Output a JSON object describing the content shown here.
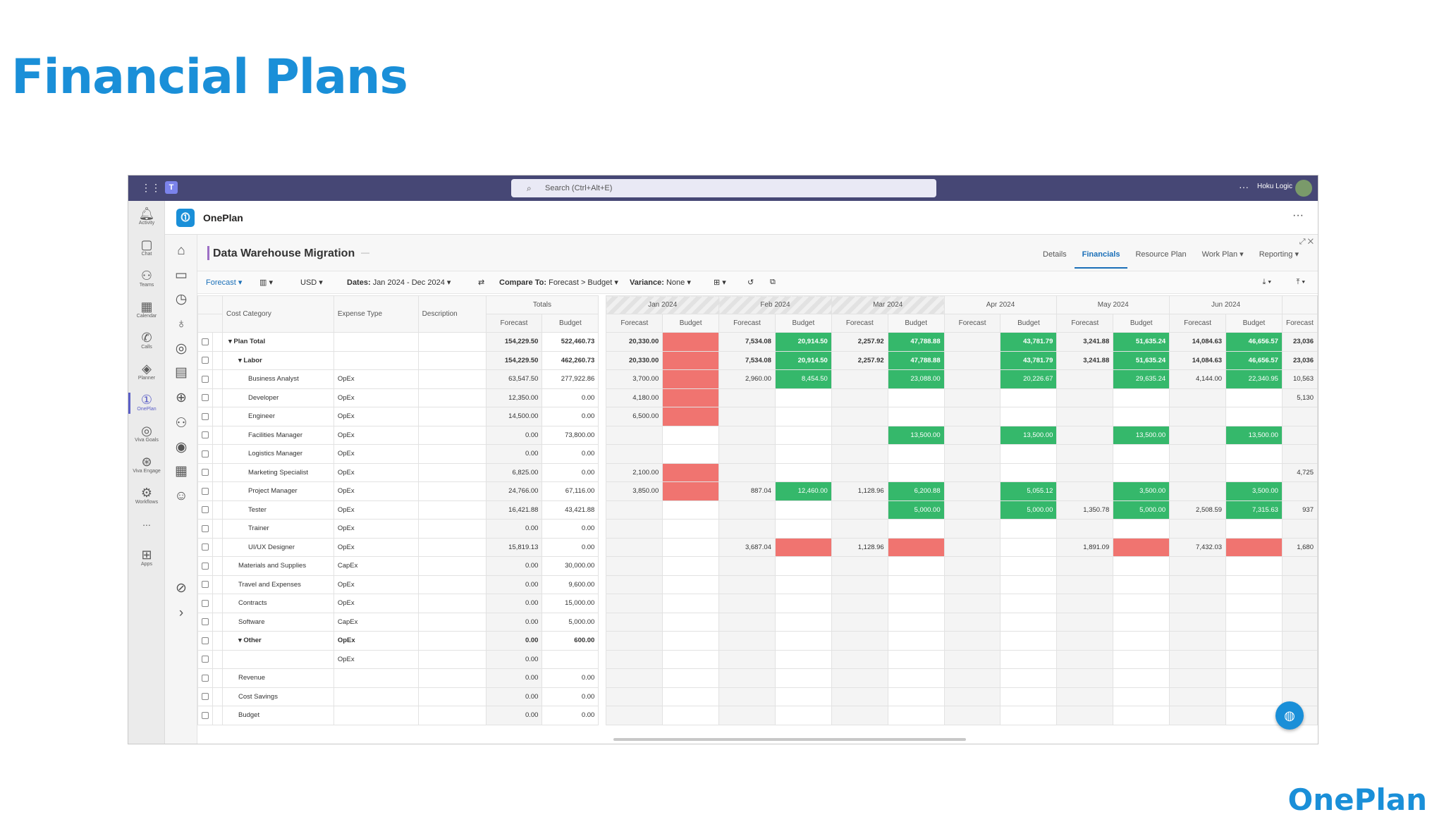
{
  "slide": {
    "title": "Financial Plans",
    "brand": "OnePlan"
  },
  "teams": {
    "search_placeholder": "Search (Ctrl+Alt+E)",
    "user": "Hoku Logic"
  },
  "rail": [
    {
      "label": "Activity",
      "icon": "bell-icon"
    },
    {
      "label": "Chat",
      "icon": "chat-icon"
    },
    {
      "label": "Teams",
      "icon": "teams-icon"
    },
    {
      "label": "Calendar",
      "icon": "calendar-icon"
    },
    {
      "label": "Calls",
      "icon": "phone-icon"
    },
    {
      "label": "Planner",
      "icon": "planner-icon"
    },
    {
      "label": "OnePlan",
      "icon": "oneplan-icon"
    },
    {
      "label": "Viva Goals",
      "icon": "goals-icon"
    },
    {
      "label": "Viva Engage",
      "icon": "engage-icon"
    },
    {
      "label": "Workflows",
      "icon": "workflows-icon"
    },
    {
      "label": "...",
      "icon": "more-icon"
    },
    {
      "label": "Apps",
      "icon": "apps-icon"
    }
  ],
  "app": {
    "name": "OnePlan"
  },
  "project": {
    "name": "Data Warehouse Migration",
    "dash": "—"
  },
  "tabs": [
    "Details",
    "Financials",
    "Resource Plan",
    "Work Plan ▾",
    "Reporting ▾"
  ],
  "toolbar": {
    "view": "Forecast ▾",
    "currency": "USD ▾",
    "dates_label": "Dates:",
    "dates_value": "Jan 2024 - Dec 2024 ▾",
    "compare_label": "Compare To:",
    "compare_value": "Forecast > Budget ▾",
    "variance_label": "Variance:",
    "variance_value": "None ▾"
  },
  "columns": {
    "cost_category": "Cost Category",
    "expense_type": "Expense Type",
    "description": "Description",
    "totals": "Totals",
    "forecast": "Forecast",
    "budget": "Budget",
    "months": [
      "Jan 2024",
      "Feb 2024",
      "Mar 2024",
      "Apr 2024",
      "May 2024",
      "Jun 2024"
    ],
    "partial": "Forecast"
  },
  "rows": [
    {
      "name": "Plan Total",
      "expand": "▾",
      "level": 0,
      "bold": true,
      "type": "",
      "tf": "154,229.50",
      "tb": "522,460.73",
      "cells": [
        [
          "20,330.00",
          "",
          "",
          "R"
        ],
        [
          "7,534.08",
          "20,914.50",
          "",
          "G"
        ],
        [
          "2,257.92",
          "47,788.88",
          "",
          "G"
        ],
        [
          "",
          "43,781.79",
          "",
          "G"
        ],
        [
          "3,241.88",
          "51,635.24",
          "",
          "G"
        ],
        [
          "14,084.63",
          "46,656.57",
          "",
          "G"
        ]
      ],
      "extra": "23,036"
    },
    {
      "name": "Labor",
      "expand": "▾",
      "level": 1,
      "bold": true,
      "type": "",
      "tf": "154,229.50",
      "tb": "462,260.73",
      "cells": [
        [
          "20,330.00",
          "",
          "",
          "R"
        ],
        [
          "7,534.08",
          "20,914.50",
          "",
          "G"
        ],
        [
          "2,257.92",
          "47,788.88",
          "",
          "G"
        ],
        [
          "",
          "43,781.79",
          "",
          "G"
        ],
        [
          "3,241.88",
          "51,635.24",
          "",
          "G"
        ],
        [
          "14,084.63",
          "46,656.57",
          "",
          "G"
        ]
      ],
      "extra": "23,036"
    },
    {
      "name": "Business Analyst",
      "level": 2,
      "type": "OpEx",
      "tf": "63,547.50",
      "tb": "277,922.86",
      "cells": [
        [
          "3,700.00",
          "",
          "",
          "R"
        ],
        [
          "2,960.00",
          "8,454.50",
          "",
          "G"
        ],
        [
          "",
          "23,088.00",
          "",
          "G"
        ],
        [
          "",
          "20,226.67",
          "",
          "G"
        ],
        [
          "",
          "29,635.24",
          "",
          "G"
        ],
        [
          "4,144.00",
          "22,340.95",
          "",
          "G"
        ]
      ],
      "extra": "10,563"
    },
    {
      "name": "Developer",
      "level": 2,
      "type": "OpEx",
      "tf": "12,350.00",
      "tb": "0.00",
      "cells": [
        [
          "4,180.00",
          "",
          "",
          "R"
        ],
        [
          "",
          "",
          "",
          ""
        ],
        [
          "",
          "",
          "",
          ""
        ],
        [
          "",
          "",
          "",
          ""
        ],
        [
          "",
          "",
          "",
          ""
        ],
        [
          "",
          "",
          "",
          ""
        ]
      ],
      "extra": "5,130"
    },
    {
      "name": "Engineer",
      "level": 2,
      "type": "OpEx",
      "tf": "14,500.00",
      "tb": "0.00",
      "cells": [
        [
          "6,500.00",
          "",
          "",
          "R"
        ],
        [
          "",
          "",
          "",
          ""
        ],
        [
          "",
          "",
          "",
          ""
        ],
        [
          "",
          "",
          "",
          ""
        ],
        [
          "",
          "",
          "",
          ""
        ],
        [
          "",
          "",
          "",
          ""
        ]
      ],
      "extra": ""
    },
    {
      "name": "Facilities Manager",
      "level": 2,
      "type": "OpEx",
      "tf": "0.00",
      "tb": "73,800.00",
      "cells": [
        [
          "",
          "",
          "",
          ""
        ],
        [
          "",
          "",
          "",
          ""
        ],
        [
          "",
          "13,500.00",
          "",
          "G"
        ],
        [
          "",
          "13,500.00",
          "",
          "G"
        ],
        [
          "",
          "13,500.00",
          "",
          "G"
        ],
        [
          "",
          "13,500.00",
          "",
          "G"
        ]
      ],
      "extra": ""
    },
    {
      "name": "Logistics Manager",
      "level": 2,
      "type": "OpEx",
      "tf": "0.00",
      "tb": "0.00",
      "cells": [
        [
          "",
          "",
          "",
          ""
        ],
        [
          "",
          "",
          "",
          ""
        ],
        [
          "",
          "",
          "",
          ""
        ],
        [
          "",
          "",
          "",
          ""
        ],
        [
          "",
          "",
          "",
          ""
        ],
        [
          "",
          "",
          "",
          ""
        ]
      ],
      "extra": ""
    },
    {
      "name": "Marketing Specialist",
      "level": 2,
      "type": "OpEx",
      "tf": "6,825.00",
      "tb": "0.00",
      "cells": [
        [
          "2,100.00",
          "",
          "",
          "R"
        ],
        [
          "",
          "",
          "",
          ""
        ],
        [
          "",
          "",
          "",
          ""
        ],
        [
          "",
          "",
          "",
          ""
        ],
        [
          "",
          "",
          "",
          ""
        ],
        [
          "",
          "",
          "",
          ""
        ]
      ],
      "extra": "4,725"
    },
    {
      "name": "Project Manager",
      "level": 2,
      "type": "OpEx",
      "tf": "24,766.00",
      "tb": "67,116.00",
      "cells": [
        [
          "3,850.00",
          "",
          "",
          "R"
        ],
        [
          "887.04",
          "12,460.00",
          "",
          "G"
        ],
        [
          "1,128.96",
          "6,200.88",
          "",
          "G"
        ],
        [
          "",
          "5,055.12",
          "",
          "G"
        ],
        [
          "",
          "3,500.00",
          "",
          "G"
        ],
        [
          "",
          "3,500.00",
          "",
          "G"
        ]
      ],
      "extra": ""
    },
    {
      "name": "Tester",
      "level": 2,
      "type": "OpEx",
      "tf": "16,421.88",
      "tb": "43,421.88",
      "cells": [
        [
          "",
          "",
          "",
          ""
        ],
        [
          "",
          "",
          "",
          ""
        ],
        [
          "",
          "5,000.00",
          "",
          "G"
        ],
        [
          "",
          "5,000.00",
          "",
          "G"
        ],
        [
          "1,350.78",
          "5,000.00",
          "",
          "G"
        ],
        [
          "2,508.59",
          "7,315.63",
          "",
          "G"
        ]
      ],
      "extra": "937"
    },
    {
      "name": "Trainer",
      "level": 2,
      "type": "OpEx",
      "tf": "0.00",
      "tb": "0.00",
      "cells": [
        [
          "",
          "",
          "",
          ""
        ],
        [
          "",
          "",
          "",
          ""
        ],
        [
          "",
          "",
          "",
          ""
        ],
        [
          "",
          "",
          "",
          ""
        ],
        [
          "",
          "",
          "",
          ""
        ],
        [
          "",
          "",
          "",
          ""
        ]
      ],
      "extra": ""
    },
    {
      "name": "UI/UX Designer",
      "level": 2,
      "type": "OpEx",
      "tf": "15,819.13",
      "tb": "0.00",
      "cells": [
        [
          "",
          "",
          "",
          ""
        ],
        [
          "3,687.04",
          "",
          "",
          "R"
        ],
        [
          "1,128.96",
          "",
          "",
          "R"
        ],
        [
          "",
          "",
          "",
          ""
        ],
        [
          "1,891.09",
          "",
          "",
          "R"
        ],
        [
          "7,432.03",
          "",
          "",
          "R"
        ]
      ],
      "extra": "1,680"
    },
    {
      "name": "Materials and Supplies",
      "level": 1,
      "type": "CapEx",
      "tf": "0.00",
      "tb": "30,000.00",
      "cells": [
        [
          "",
          "",
          "",
          ""
        ],
        [
          "",
          "",
          "",
          ""
        ],
        [
          "",
          "",
          "",
          ""
        ],
        [
          "",
          "",
          "",
          ""
        ],
        [
          "",
          "",
          "",
          ""
        ],
        [
          "",
          "",
          "",
          ""
        ]
      ],
      "extra": ""
    },
    {
      "name": "Travel and Expenses",
      "level": 1,
      "type": "OpEx",
      "tf": "0.00",
      "tb": "9,600.00",
      "cells": [
        [
          "",
          "",
          "",
          ""
        ],
        [
          "",
          "",
          "",
          ""
        ],
        [
          "",
          "",
          "",
          ""
        ],
        [
          "",
          "",
          "",
          ""
        ],
        [
          "",
          "",
          "",
          ""
        ],
        [
          "",
          "",
          "",
          ""
        ]
      ],
      "extra": ""
    },
    {
      "name": "Contracts",
      "level": 1,
      "type": "OpEx",
      "tf": "0.00",
      "tb": "15,000.00",
      "cells": [
        [
          "",
          "",
          "",
          ""
        ],
        [
          "",
          "",
          "",
          ""
        ],
        [
          "",
          "",
          "",
          ""
        ],
        [
          "",
          "",
          "",
          ""
        ],
        [
          "",
          "",
          "",
          ""
        ],
        [
          "",
          "",
          "",
          ""
        ]
      ],
      "extra": ""
    },
    {
      "name": "Software",
      "level": 1,
      "type": "CapEx",
      "tf": "0.00",
      "tb": "5,000.00",
      "cells": [
        [
          "",
          "",
          "",
          ""
        ],
        [
          "",
          "",
          "",
          ""
        ],
        [
          "",
          "",
          "",
          ""
        ],
        [
          "",
          "",
          "",
          ""
        ],
        [
          "",
          "",
          "",
          ""
        ],
        [
          "",
          "",
          "",
          ""
        ]
      ],
      "extra": ""
    },
    {
      "name": "Other",
      "expand": "▾",
      "level": 1,
      "bold": true,
      "type": "OpEx",
      "tf": "0.00",
      "tb": "600.00",
      "cells": [
        [
          "",
          "",
          "",
          ""
        ],
        [
          "",
          "",
          "",
          ""
        ],
        [
          "",
          "",
          "",
          ""
        ],
        [
          "",
          "",
          "",
          ""
        ],
        [
          "",
          "",
          "",
          ""
        ],
        [
          "",
          "",
          "",
          ""
        ]
      ],
      "extra": ""
    },
    {
      "name": "",
      "level": 2,
      "type": "OpEx",
      "tf": "0.00",
      "tb": "",
      "cells": [
        [
          "",
          "",
          "",
          ""
        ],
        [
          "",
          "",
          "",
          ""
        ],
        [
          "",
          "",
          "",
          ""
        ],
        [
          "",
          "",
          "",
          ""
        ],
        [
          "",
          "",
          "",
          ""
        ],
        [
          "",
          "",
          "",
          ""
        ]
      ],
      "extra": ""
    },
    {
      "name": "Revenue",
      "level": 1,
      "type": "",
      "tf": "0.00",
      "tb": "0.00",
      "cells": [
        [
          "",
          "",
          "",
          ""
        ],
        [
          "",
          "",
          "",
          ""
        ],
        [
          "",
          "",
          "",
          ""
        ],
        [
          "",
          "",
          "",
          ""
        ],
        [
          "",
          "",
          "",
          ""
        ],
        [
          "",
          "",
          "",
          ""
        ]
      ],
      "extra": ""
    },
    {
      "name": "Cost Savings",
      "level": 1,
      "type": "",
      "tf": "0.00",
      "tb": "0.00",
      "cells": [
        [
          "",
          "",
          "",
          ""
        ],
        [
          "",
          "",
          "",
          ""
        ],
        [
          "",
          "",
          "",
          ""
        ],
        [
          "",
          "",
          "",
          ""
        ],
        [
          "",
          "",
          "",
          ""
        ],
        [
          "",
          "",
          "",
          ""
        ]
      ],
      "extra": ""
    },
    {
      "name": "Budget",
      "level": 1,
      "type": "",
      "tf": "0.00",
      "tb": "0.00",
      "cells": [
        [
          "",
          "",
          "",
          ""
        ],
        [
          "",
          "",
          "",
          ""
        ],
        [
          "",
          "",
          "",
          ""
        ],
        [
          "",
          "",
          "",
          ""
        ],
        [
          "",
          "",
          "",
          ""
        ],
        [
          "",
          "",
          "",
          ""
        ]
      ],
      "extra": ""
    }
  ],
  "colors": {
    "brand": "#1a8fd8",
    "teams_bar": "#464775",
    "over": "#35b86b",
    "under": "#f07470"
  }
}
